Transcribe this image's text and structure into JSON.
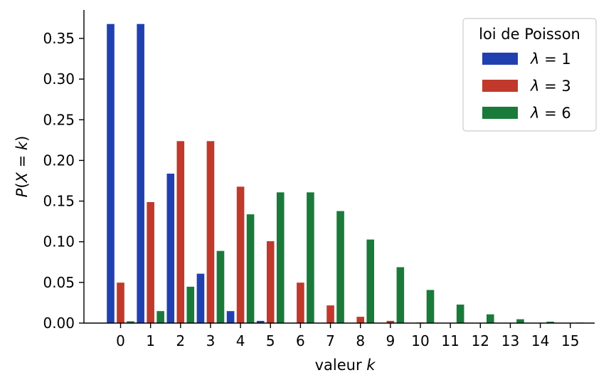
{
  "chart_data": {
    "type": "bar",
    "categories": [
      "0",
      "1",
      "2",
      "3",
      "4",
      "5",
      "6",
      "7",
      "8",
      "9",
      "10",
      "11",
      "12",
      "13",
      "14",
      "15"
    ],
    "xlabel": "valeur k",
    "ylabel": "P(X = k)",
    "ylim": [
      0,
      0.385
    ],
    "yticks": [
      "0.00",
      "0.05",
      "0.10",
      "0.15",
      "0.20",
      "0.25",
      "0.30",
      "0.35"
    ],
    "grid": false,
    "legend": {
      "title": "loi de Poisson",
      "placement": "top-right"
    },
    "series": [
      {
        "name": "λ = 1",
        "color": "#2140b0",
        "values": [
          0.368,
          0.368,
          0.184,
          0.061,
          0.015,
          0.003,
          0.0005,
          0.0001,
          0.0,
          0.0,
          0.0,
          0.0,
          0.0,
          0.0,
          0.0,
          0.0
        ]
      },
      {
        "name": "λ = 3",
        "color": "#c0392b",
        "values": [
          0.05,
          0.149,
          0.224,
          0.224,
          0.168,
          0.101,
          0.05,
          0.022,
          0.008,
          0.003,
          0.001,
          0.0002,
          0.0,
          0.0,
          0.0,
          0.0
        ]
      },
      {
        "name": "λ = 6",
        "color": "#1a7a3a",
        "values": [
          0.0025,
          0.015,
          0.045,
          0.089,
          0.134,
          0.161,
          0.161,
          0.138,
          0.103,
          0.069,
          0.041,
          0.023,
          0.011,
          0.005,
          0.002,
          0.0009
        ]
      }
    ]
  }
}
